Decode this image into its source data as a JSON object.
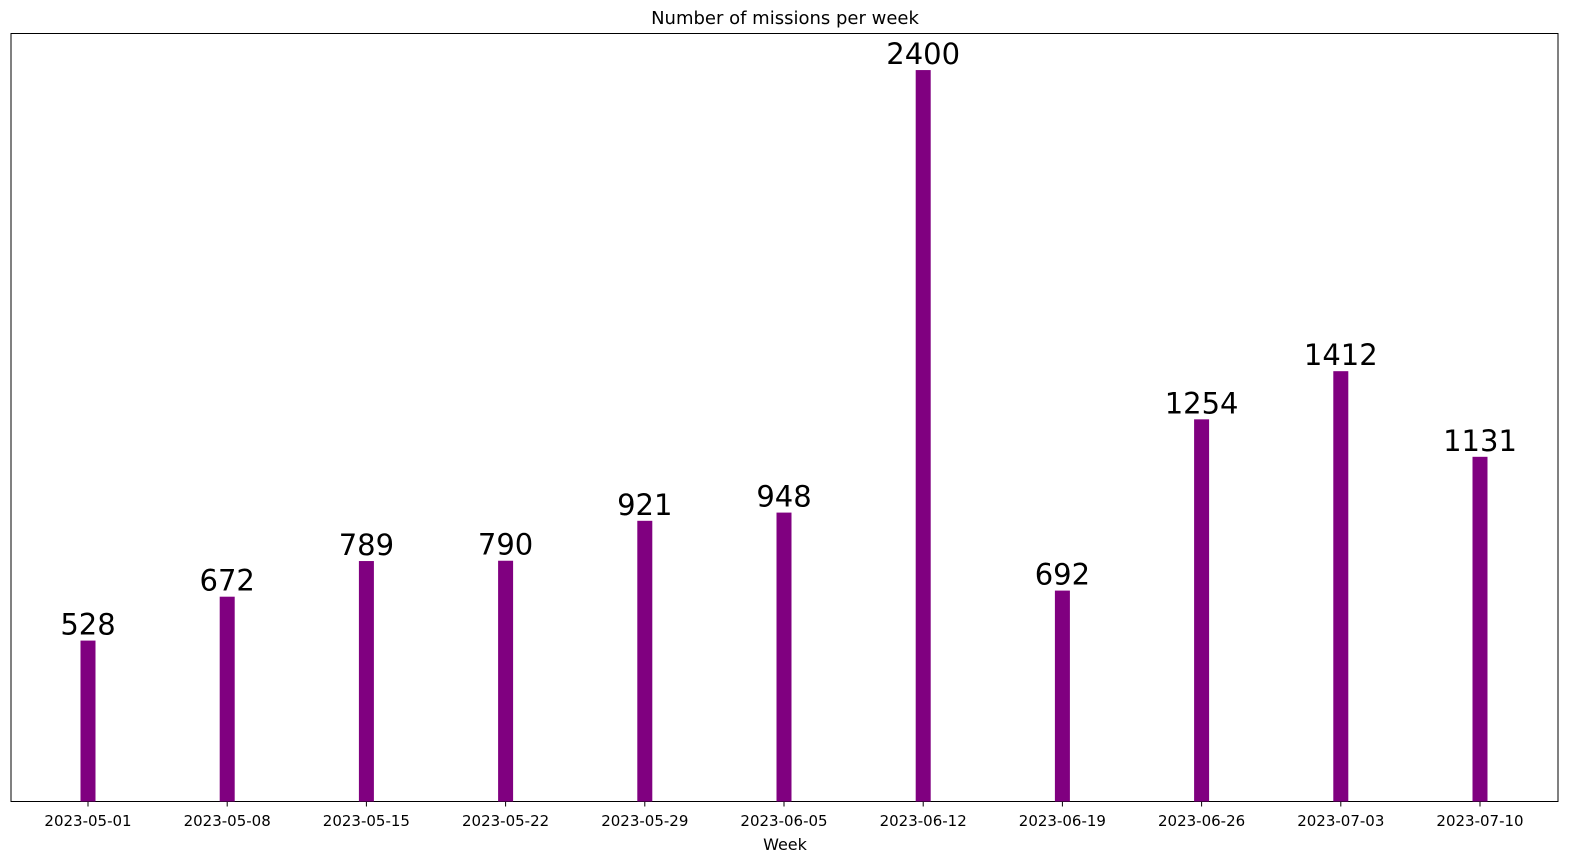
{
  "chart_data": {
    "type": "bar",
    "title": "Number of missions per week",
    "xlabel": "Week",
    "ylabel": "",
    "categories": [
      "2023-05-01",
      "2023-05-08",
      "2023-05-15",
      "2023-05-22",
      "2023-05-29",
      "2023-06-05",
      "2023-06-12",
      "2023-06-19",
      "2023-06-26",
      "2023-07-03",
      "2023-07-10"
    ],
    "values": [
      528,
      672,
      789,
      790,
      921,
      948,
      2400,
      692,
      1254,
      1412,
      1131
    ],
    "ylim": [
      0,
      2520
    ],
    "bar_color": "#800080",
    "grid": false,
    "legend": "none",
    "y_ticks_visible": false
  }
}
